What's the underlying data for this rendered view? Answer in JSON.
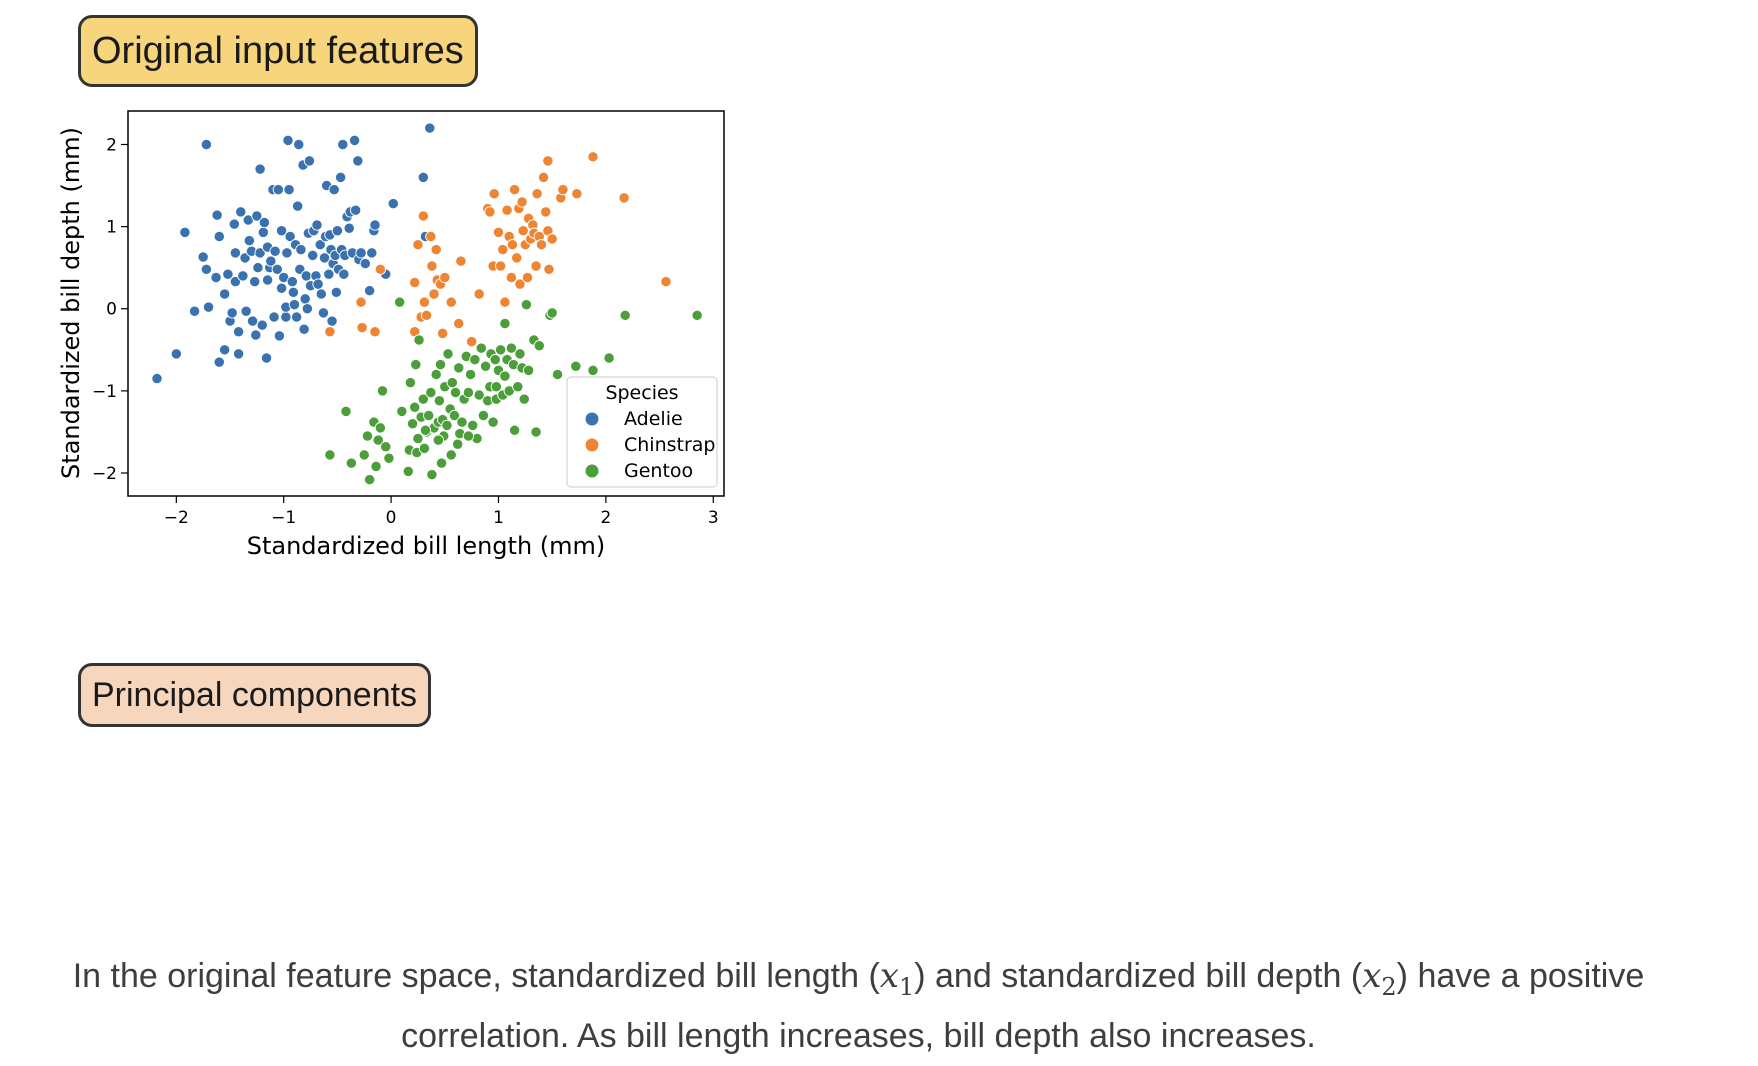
{
  "pills": {
    "original": {
      "label": "Original input features",
      "color": "#f7d57c"
    },
    "pc": {
      "label": "Principal components",
      "color": "#f6d6bd"
    }
  },
  "caption": {
    "part1": "In the original feature space, standardized bill length (",
    "x1_var": "x",
    "x1_sub": "1",
    "part2": ") and standardized bill depth (",
    "x2_var": "x",
    "x2_sub": "2",
    "part3": ") have a positive correlation. As bill length increases, bill depth also increases."
  },
  "chart_data": {
    "type": "scatter",
    "xlabel": "Standardized bill length (mm)",
    "ylabel": "Standardized bill depth (mm)",
    "xlim": [
      -2.45,
      3.1
    ],
    "ylim": [
      -2.28,
      2.42
    ],
    "xticks": [
      -2,
      -1,
      0,
      1,
      2,
      3
    ],
    "yticks": [
      -2,
      -1,
      0,
      1,
      2
    ],
    "grid": false,
    "legend": {
      "title": "Species",
      "position": "lower-right"
    },
    "series": [
      {
        "name": "Adelie",
        "color": "#3a72b0",
        "points": [
          [
            -2.18,
            -0.85
          ],
          [
            -2.0,
            -0.55
          ],
          [
            -1.92,
            0.93
          ],
          [
            -1.83,
            -0.03
          ],
          [
            -1.75,
            0.63
          ],
          [
            -1.72,
            0.48
          ],
          [
            -1.7,
            0.02
          ],
          [
            -1.72,
            2.0
          ],
          [
            -1.63,
            0.38
          ],
          [
            -1.62,
            1.14
          ],
          [
            -1.6,
            0.88
          ],
          [
            -1.6,
            -0.65
          ],
          [
            -1.55,
            -0.5
          ],
          [
            -1.55,
            0.18
          ],
          [
            -1.52,
            0.42
          ],
          [
            -1.5,
            -0.15
          ],
          [
            -1.48,
            -0.05
          ],
          [
            -1.46,
            1.03
          ],
          [
            -1.45,
            0.33
          ],
          [
            -1.45,
            0.68
          ],
          [
            -1.42,
            -0.55
          ],
          [
            -1.42,
            -0.28
          ],
          [
            -1.4,
            1.18
          ],
          [
            -1.38,
            0.4
          ],
          [
            -1.36,
            0.62
          ],
          [
            -1.35,
            -0.03
          ],
          [
            -1.33,
            1.08
          ],
          [
            -1.32,
            0.83
          ],
          [
            -1.3,
            0.7
          ],
          [
            -1.29,
            -0.15
          ],
          [
            -1.27,
            0.33
          ],
          [
            -1.26,
            -0.32
          ],
          [
            -1.25,
            1.13
          ],
          [
            -1.24,
            0.5
          ],
          [
            -1.22,
            0.68
          ],
          [
            -1.22,
            1.7
          ],
          [
            -1.2,
            -0.2
          ],
          [
            -1.19,
            0.93
          ],
          [
            -1.18,
            1.05
          ],
          [
            -1.16,
            -0.6
          ],
          [
            -1.15,
            0.75
          ],
          [
            -1.15,
            0.35
          ],
          [
            -1.13,
            0.5
          ],
          [
            -1.12,
            0.58
          ],
          [
            -1.1,
            1.45
          ],
          [
            -1.09,
            -0.1
          ],
          [
            -1.08,
            0.7
          ],
          [
            -1.06,
            0.48
          ],
          [
            -1.05,
            1.45
          ],
          [
            -1.04,
            -0.33
          ],
          [
            -1.02,
            0.25
          ],
          [
            -1.02,
            0.95
          ],
          [
            -1.0,
            0.38
          ],
          [
            -0.98,
            -0.1
          ],
          [
            -0.98,
            0.02
          ],
          [
            -0.97,
            0.68
          ],
          [
            -0.96,
            2.05
          ],
          [
            -0.95,
            1.45
          ],
          [
            -0.94,
            0.88
          ],
          [
            -0.92,
            0.33
          ],
          [
            -0.91,
            0.2
          ],
          [
            -0.9,
            0.05
          ],
          [
            -0.89,
            0.78
          ],
          [
            -0.88,
            -0.1
          ],
          [
            -0.87,
            1.25
          ],
          [
            -0.86,
            2.0
          ],
          [
            -0.85,
            0.48
          ],
          [
            -0.84,
            0.72
          ],
          [
            -0.82,
            1.75
          ],
          [
            -0.81,
            -0.25
          ],
          [
            -0.8,
            0.12
          ],
          [
            -0.79,
            0.4
          ],
          [
            -0.78,
            0.0
          ],
          [
            -0.77,
            0.92
          ],
          [
            -0.76,
            1.8
          ],
          [
            -0.75,
            0.28
          ],
          [
            -0.73,
            0.65
          ],
          [
            -0.72,
            0.95
          ],
          [
            -0.7,
            0.4
          ],
          [
            -0.69,
            1.02
          ],
          [
            -0.68,
            0.3
          ],
          [
            -0.66,
            0.78
          ],
          [
            -0.65,
            0.18
          ],
          [
            -0.63,
            -0.05
          ],
          [
            -0.62,
            0.62
          ],
          [
            -0.61,
            0.88
          ],
          [
            -0.6,
            1.5
          ],
          [
            -0.58,
            0.42
          ],
          [
            -0.57,
            0.9
          ],
          [
            -0.56,
            0.72
          ],
          [
            -0.55,
            -0.15
          ],
          [
            -0.54,
            0.55
          ],
          [
            -0.53,
            1.45
          ],
          [
            -0.52,
            0.65
          ],
          [
            -0.51,
            0.2
          ],
          [
            -0.5,
            0.95
          ],
          [
            -0.49,
            0.48
          ],
          [
            -0.47,
            1.6
          ],
          [
            -0.46,
            0.72
          ],
          [
            -0.45,
            2.0
          ],
          [
            -0.44,
            0.42
          ],
          [
            -0.43,
            0.65
          ],
          [
            -0.41,
            1.12
          ],
          [
            -0.39,
            0.98
          ],
          [
            -0.38,
            1.18
          ],
          [
            -0.36,
            0.68
          ],
          [
            -0.34,
            2.05
          ],
          [
            -0.33,
            1.2
          ],
          [
            -0.31,
            1.8
          ],
          [
            -0.3,
            0.6
          ],
          [
            -0.28,
            0.68
          ],
          [
            -0.24,
            0.55
          ],
          [
            -0.2,
            0.22
          ],
          [
            -0.18,
            0.68
          ],
          [
            -0.16,
            0.95
          ],
          [
            -0.15,
            1.02
          ],
          [
            -0.05,
            0.42
          ],
          [
            0.02,
            1.28
          ],
          [
            0.3,
            1.6
          ],
          [
            0.32,
            0.88
          ],
          [
            0.36,
            2.2
          ]
        ]
      },
      {
        "name": "Chinstrap",
        "color": "#ee8533",
        "points": [
          [
            -0.57,
            -0.28
          ],
          [
            -0.28,
            0.08
          ],
          [
            -0.27,
            -0.23
          ],
          [
            -0.15,
            -0.28
          ],
          [
            -0.1,
            0.48
          ],
          [
            0.22,
            0.32
          ],
          [
            0.22,
            -0.28
          ],
          [
            0.25,
            0.78
          ],
          [
            0.28,
            -0.1
          ],
          [
            0.3,
            1.13
          ],
          [
            0.31,
            0.08
          ],
          [
            0.33,
            -0.08
          ],
          [
            0.37,
            0.88
          ],
          [
            0.38,
            0.52
          ],
          [
            0.4,
            0.18
          ],
          [
            0.42,
            0.72
          ],
          [
            0.43,
            0.35
          ],
          [
            0.46,
            0.3
          ],
          [
            0.48,
            -0.3
          ],
          [
            0.5,
            0.38
          ],
          [
            0.56,
            0.08
          ],
          [
            0.63,
            -0.18
          ],
          [
            0.65,
            0.58
          ],
          [
            0.75,
            -0.4
          ],
          [
            0.82,
            0.18
          ],
          [
            0.9,
            1.22
          ],
          [
            0.92,
            1.18
          ],
          [
            0.95,
            0.52
          ],
          [
            0.96,
            1.4
          ],
          [
            1.0,
            0.93
          ],
          [
            1.02,
            0.52
          ],
          [
            1.04,
            0.72
          ],
          [
            1.06,
            0.08
          ],
          [
            1.08,
            1.2
          ],
          [
            1.1,
            0.88
          ],
          [
            1.12,
            0.38
          ],
          [
            1.13,
            0.78
          ],
          [
            1.15,
            1.45
          ],
          [
            1.17,
            0.62
          ],
          [
            1.19,
            1.22
          ],
          [
            1.2,
            0.3
          ],
          [
            1.22,
            1.3
          ],
          [
            1.23,
            0.95
          ],
          [
            1.25,
            0.78
          ],
          [
            1.27,
            0.38
          ],
          [
            1.28,
            1.1
          ],
          [
            1.3,
            0.85
          ],
          [
            1.32,
            1.02
          ],
          [
            1.33,
            0.92
          ],
          [
            1.35,
            0.52
          ],
          [
            1.36,
            1.4
          ],
          [
            1.38,
            0.88
          ],
          [
            1.4,
            0.78
          ],
          [
            1.42,
            1.6
          ],
          [
            1.44,
            1.18
          ],
          [
            1.46,
            0.95
          ],
          [
            1.47,
            0.48
          ],
          [
            1.5,
            0.85
          ],
          [
            1.58,
            1.35
          ],
          [
            1.6,
            1.45
          ],
          [
            1.73,
            1.4
          ],
          [
            1.88,
            1.85
          ],
          [
            2.17,
            1.35
          ],
          [
            2.56,
            0.33
          ],
          [
            1.46,
            1.8
          ]
        ]
      },
      {
        "name": "Gentoo",
        "color": "#4c9e3b",
        "points": [
          [
            -0.57,
            -1.78
          ],
          [
            -0.42,
            -1.25
          ],
          [
            -0.37,
            -1.88
          ],
          [
            -0.25,
            -1.78
          ],
          [
            -0.22,
            -1.55
          ],
          [
            -0.2,
            -2.08
          ],
          [
            -0.16,
            -1.38
          ],
          [
            -0.14,
            -1.92
          ],
          [
            -0.12,
            -1.6
          ],
          [
            -0.1,
            -1.45
          ],
          [
            -0.08,
            -1.0
          ],
          [
            -0.05,
            -1.68
          ],
          [
            -0.02,
            -1.82
          ],
          [
            0.08,
            0.08
          ],
          [
            0.1,
            -1.25
          ],
          [
            0.16,
            -1.98
          ],
          [
            0.17,
            -1.72
          ],
          [
            0.18,
            -0.9
          ],
          [
            0.2,
            -1.4
          ],
          [
            0.22,
            -1.2
          ],
          [
            0.23,
            -0.68
          ],
          [
            0.24,
            -1.75
          ],
          [
            0.25,
            -1.58
          ],
          [
            0.26,
            -0.38
          ],
          [
            0.28,
            -1.32
          ],
          [
            0.3,
            -1.1
          ],
          [
            0.31,
            -1.7
          ],
          [
            0.33,
            -1.5
          ],
          [
            0.35,
            -1.3
          ],
          [
            0.37,
            -1.02
          ],
          [
            0.38,
            -2.02
          ],
          [
            0.4,
            -1.45
          ],
          [
            0.42,
            -0.8
          ],
          [
            0.44,
            -1.38
          ],
          [
            0.45,
            -1.12
          ],
          [
            0.46,
            -0.68
          ],
          [
            0.47,
            -1.88
          ],
          [
            0.48,
            -1.35
          ],
          [
            0.49,
            -1.55
          ],
          [
            0.5,
            -0.95
          ],
          [
            0.52,
            -1.42
          ],
          [
            0.53,
            -0.55
          ],
          [
            0.55,
            -1.22
          ],
          [
            0.56,
            -1.78
          ],
          [
            0.57,
            -0.9
          ],
          [
            0.59,
            -1.3
          ],
          [
            0.6,
            -1.02
          ],
          [
            0.62,
            -1.65
          ],
          [
            0.63,
            -0.72
          ],
          [
            0.64,
            -1.52
          ],
          [
            0.66,
            -1.38
          ],
          [
            0.68,
            -1.1
          ],
          [
            0.7,
            -0.58
          ],
          [
            0.72,
            -1.02
          ],
          [
            0.74,
            -0.8
          ],
          [
            0.76,
            -1.42
          ],
          [
            0.78,
            -0.62
          ],
          [
            0.8,
            -1.58
          ],
          [
            0.82,
            -1.05
          ],
          [
            0.84,
            -0.48
          ],
          [
            0.86,
            -1.3
          ],
          [
            0.88,
            -0.7
          ],
          [
            0.9,
            -1.12
          ],
          [
            0.92,
            -0.95
          ],
          [
            0.93,
            -0.55
          ],
          [
            0.95,
            -1.38
          ],
          [
            0.97,
            -0.62
          ],
          [
            0.98,
            -1.1
          ],
          [
            1.0,
            -0.75
          ],
          [
            1.02,
            -0.5
          ],
          [
            1.04,
            -1.05
          ],
          [
            1.06,
            -0.82
          ],
          [
            1.08,
            -0.62
          ],
          [
            1.1,
            -1.0
          ],
          [
            1.12,
            -0.48
          ],
          [
            1.14,
            -0.68
          ],
          [
            1.15,
            -1.48
          ],
          [
            1.18,
            -0.95
          ],
          [
            1.2,
            -0.55
          ],
          [
            1.22,
            -0.72
          ],
          [
            1.24,
            -1.1
          ],
          [
            1.26,
            0.05
          ],
          [
            1.28,
            -0.75
          ],
          [
            1.33,
            -0.38
          ],
          [
            1.35,
            -1.5
          ],
          [
            1.38,
            -0.45
          ],
          [
            1.48,
            -0.08
          ],
          [
            1.5,
            -0.05
          ],
          [
            1.55,
            -0.8
          ],
          [
            1.72,
            -0.7
          ],
          [
            1.88,
            -0.75
          ],
          [
            2.03,
            -0.6
          ],
          [
            2.18,
            -0.08
          ],
          [
            2.85,
            -0.08
          ],
          [
            1.06,
            -0.18
          ],
          [
            0.98,
            -0.95
          ],
          [
            0.72,
            -1.55
          ],
          [
            0.44,
            -1.6
          ],
          [
            0.32,
            -1.48
          ]
        ]
      }
    ]
  }
}
